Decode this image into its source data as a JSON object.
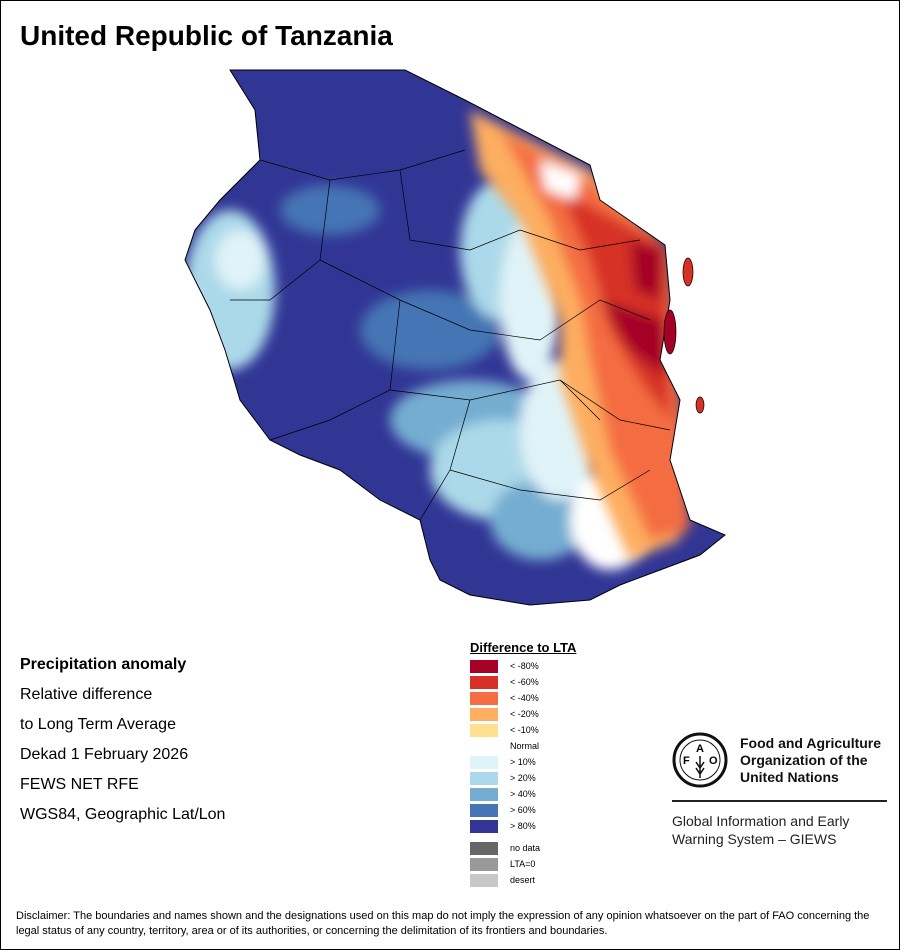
{
  "title": "United Republic of Tanzania",
  "info": {
    "heading": "Precipitation anomaly",
    "lines": [
      "Relative difference",
      "to Long Term Average",
      "Dekad 1 February 2026",
      "FEWS NET RFE",
      "WGS84, Geographic Lat/Lon"
    ]
  },
  "legend": {
    "title": "Difference to LTA",
    "items": [
      {
        "label": "< -80%",
        "color": "#a50026"
      },
      {
        "label": "< -60%",
        "color": "#d73027"
      },
      {
        "label": "< -40%",
        "color": "#f46d43"
      },
      {
        "label": "< -20%",
        "color": "#fdae61"
      },
      {
        "label": "< -10%",
        "color": "#fee090"
      },
      {
        "label": "Normal",
        "color": "#ffffff"
      },
      {
        "label": "> 10%",
        "color": "#e0f3f8"
      },
      {
        "label": "> 20%",
        "color": "#abd9e9"
      },
      {
        "label": "> 40%",
        "color": "#74add1"
      },
      {
        "label": "> 60%",
        "color": "#4575b4"
      },
      {
        "label": "> 80%",
        "color": "#313695"
      }
    ],
    "extra": [
      {
        "label": "no data",
        "color": "#666666"
      },
      {
        "label": "LTA=0",
        "color": "#999999"
      },
      {
        "label": "desert",
        "color": "#c8c8c8"
      }
    ]
  },
  "fao": {
    "logo_text": "FAO FIAT PANIS",
    "name_lines": [
      "Food and Agriculture",
      "Organization of the",
      "United Nations"
    ],
    "giews_lines": [
      "Global Information and Early",
      "Warning System – GIEWS"
    ]
  },
  "disclaimer": "Disclaimer: The boundaries and names shown and the designations used on this map do not imply the expression of any opinion whatsoever on the part of FAO concerning the legal status of any country, territory, area or of its authorities, or concerning the delimitation of its frontiers and boundaries."
}
